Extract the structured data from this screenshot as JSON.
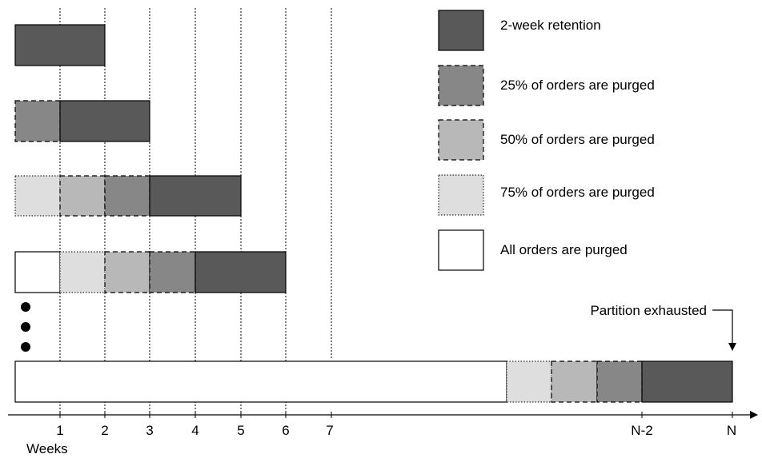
{
  "colors": {
    "retention": "#595959",
    "purged25": "#878787",
    "purged50": "#b8b8b8",
    "purged75": "#dedede",
    "purged_all": "#ffffff",
    "outline": "#000000"
  },
  "legend": [
    {
      "label": "2-week retention",
      "style": "retention"
    },
    {
      "label": "25% of orders are purged",
      "style": "purged25"
    },
    {
      "label": "50% of orders are purged",
      "style": "purged50"
    },
    {
      "label": "75% of orders are purged",
      "style": "purged75"
    },
    {
      "label": "All orders are purged",
      "style": "purged_all"
    }
  ],
  "rows": [
    {
      "segments": [
        "retention"
      ]
    },
    {
      "segments": [
        "purged25",
        "retention"
      ]
    },
    {
      "segments": [
        "purged75",
        "purged50",
        "purged25",
        "retention"
      ]
    },
    {
      "segments": [
        "purged_all",
        "purged75",
        "purged50",
        "purged25",
        "retention"
      ]
    },
    {
      "segments": [
        "purged_all",
        "purged75",
        "purged50",
        "purged25",
        "retention"
      ]
    }
  ],
  "axis": {
    "ticks": [
      "1",
      "2",
      "3",
      "4",
      "5",
      "6",
      "7",
      "N-2",
      "N"
    ],
    "unit_label": "Weeks"
  },
  "annotation": "Partition exhausted"
}
